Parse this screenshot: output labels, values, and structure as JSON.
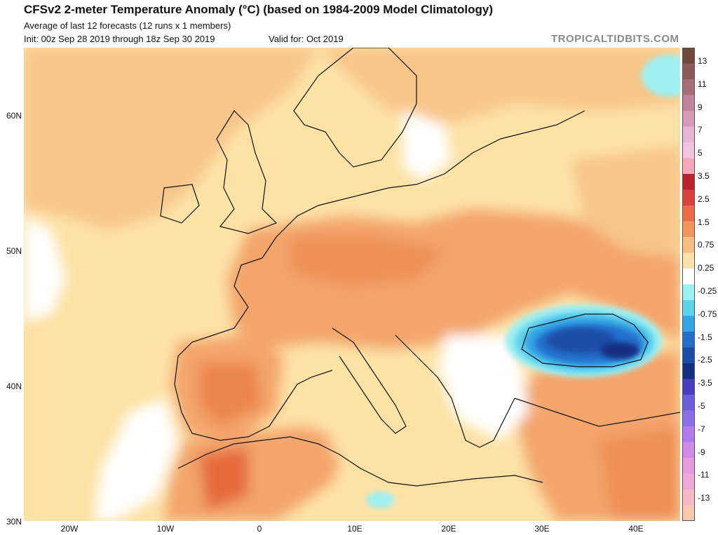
{
  "header": {
    "title": "CFSv2 2-meter Temperature Anomaly (°C) (based on 1984-2009 Model Climatology)",
    "subtitle_line1": "Average of last 12 forecasts (12 runs x 1 members)",
    "subtitle_line2": "Init: 00z Sep 28 2019 through 18z Sep 30 2019",
    "valid": "Valid for: Oct 2019",
    "brand": "TROPICALTIDBITS.COM"
  },
  "axes": {
    "lat_labels": [
      "60N",
      "50N",
      "40N",
      "30N"
    ],
    "lon_labels": [
      "20W",
      "10W",
      "0",
      "10E",
      "20E",
      "30E",
      "40E"
    ]
  },
  "colorbar": {
    "labels": [
      "13",
      "11",
      "9",
      "7",
      "5",
      "3.5",
      "2.5",
      "1.5",
      "0.75",
      "0.25",
      "-0.25",
      "-0.75",
      "-1.5",
      "-2.5",
      "-3.5",
      "-5",
      "-7",
      "-9",
      "-11",
      "-13"
    ],
    "colors": [
      "#6e4a3a",
      "#8c5a5a",
      "#a86e78",
      "#c0849a",
      "#d49ab8",
      "#e8b4d4",
      "#f3c2e0",
      "#f7a8b8",
      "#b8242c",
      "#d8423c",
      "#ec6a46",
      "#f2955e",
      "#f6bf82",
      "#fbe2a8",
      "#ffffff",
      "#9ff0f0",
      "#5ed2ee",
      "#36a4e4",
      "#2270cc",
      "#1a4ea8",
      "#142e80",
      "#4a3ec0",
      "#6e5cd8",
      "#8c6ee8",
      "#b07af0",
      "#d08ae8",
      "#e89ae0",
      "#f0a8d8",
      "#f8b8c8",
      "#fbc9b0"
    ]
  }
}
